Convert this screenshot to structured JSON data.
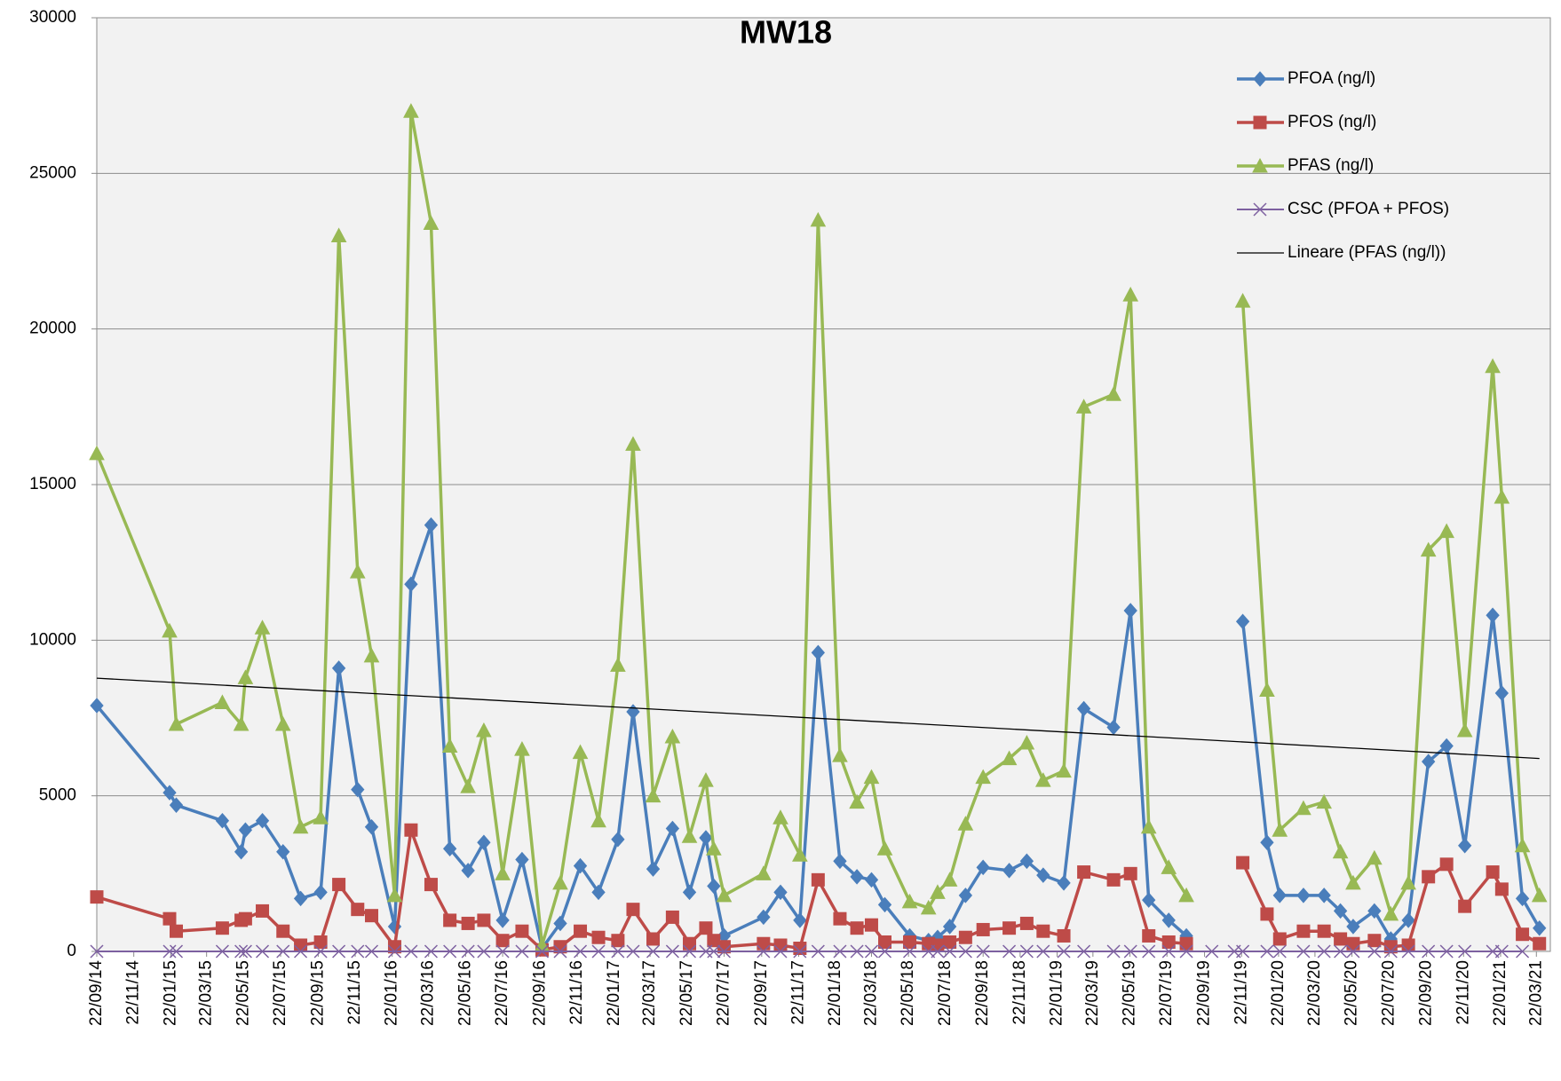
{
  "chart_data": {
    "type": "line",
    "title": "MW18",
    "x": [
      "22/09/14",
      "20/01/15",
      "31/01/15",
      "17/04/15",
      "18/05/15",
      "25/05/15",
      "22/06/15",
      "26/07/15",
      "24/08/15",
      "26/09/15",
      "26/10/15",
      "26/11/15",
      "19/12/15",
      "26/01/16",
      "22/02/16",
      "26/03/16",
      "26/04/16",
      "26/05/16",
      "21/06/16",
      "22/07/16",
      "23/08/16",
      "25/09/16",
      "25/10/16",
      "27/11/16",
      "27/12/16",
      "28/01/17",
      "22/02/17",
      "27/03/17",
      "28/04/17",
      "26/05/17",
      "22/06/17",
      "05/07/17",
      "22/07/17",
      "25/09/17",
      "23/10/17",
      "24/11/17",
      "24/12/17",
      "29/01/18",
      "26/02/18",
      "22/03/18",
      "13/04/18",
      "24/05/18",
      "24/06/18",
      "09/07/18",
      "29/07/18",
      "24/08/18",
      "22/09/18",
      "04/11/18",
      "03/12/18",
      "30/12/18",
      "02/02/19",
      "07/03/19",
      "25/04/19",
      "23/05/19",
      "22/06/19",
      "25/07/19",
      "23/08/19",
      "04/10/19",
      "10/11/19",
      "24/11/19",
      "03/01/20",
      "24/01/20",
      "03/03/20",
      "06/04/20",
      "03/05/20",
      "24/05/20",
      "28/06/20",
      "25/07/20",
      "23/08/20",
      "25/09/20",
      "25/10/20",
      "24/11/20",
      "09/01/21",
      "24/01/21",
      "27/02/21",
      "27/03/21"
    ],
    "series": [
      {
        "name": "PFOA (ng/l)",
        "color": "#4a7ebb",
        "marker": "diamond",
        "values": [
          7900,
          5100,
          4700,
          4200,
          3200,
          3900,
          4200,
          3200,
          1700,
          1900,
          9100,
          5200,
          4000,
          800,
          11800,
          13700,
          3300,
          2600,
          3500,
          1000,
          2950,
          100,
          900,
          2750,
          1900,
          3600,
          7700,
          2650,
          3950,
          1900,
          3650,
          2100,
          500,
          1100,
          1900,
          1000,
          9600,
          2900,
          2400,
          2300,
          1500,
          500,
          350,
          450,
          800,
          1800,
          2700,
          2600,
          2900,
          2450,
          2200,
          7800,
          7200,
          10950,
          1650,
          1000,
          500,
          null,
          null,
          10600,
          3500,
          1800,
          1800,
          1800,
          1300,
          800,
          1300,
          400,
          1000,
          6100,
          6600,
          3400,
          10800,
          8300,
          1700,
          750
        ]
      },
      {
        "name": "PFOS (ng/l)",
        "color": "#be4b48",
        "marker": "square",
        "values": [
          1750,
          1050,
          650,
          750,
          1000,
          1050,
          1300,
          650,
          200,
          300,
          2150,
          1350,
          1150,
          150,
          3900,
          2150,
          1000,
          900,
          1000,
          350,
          650,
          50,
          150,
          650,
          450,
          350,
          1350,
          400,
          1100,
          250,
          750,
          350,
          150,
          250,
          200,
          100,
          2300,
          1050,
          750,
          850,
          300,
          300,
          250,
          200,
          300,
          450,
          700,
          750,
          900,
          650,
          500,
          2550,
          2300,
          2500,
          500,
          300,
          250,
          null,
          null,
          2850,
          1200,
          400,
          650,
          650,
          400,
          250,
          350,
          150,
          200,
          2400,
          2800,
          1450,
          2550,
          2000,
          550,
          250
        ]
      },
      {
        "name": "PFAS (ng/l)",
        "color": "#98b954",
        "marker": "triangle",
        "values": [
          16000,
          10300,
          7300,
          8000,
          7300,
          8800,
          10400,
          7300,
          4000,
          4300,
          23000,
          12200,
          9500,
          1800,
          27000,
          23400,
          6600,
          5300,
          7100,
          2500,
          6500,
          200,
          2200,
          6400,
          4200,
          9200,
          16300,
          5000,
          6900,
          3700,
          5500,
          3300,
          1800,
          2500,
          4300,
          3100,
          23500,
          6300,
          4800,
          5600,
          3300,
          1600,
          1400,
          1900,
          2300,
          4100,
          5600,
          6200,
          6700,
          5500,
          5800,
          17500,
          17900,
          21100,
          4000,
          2700,
          1800,
          null,
          null,
          20900,
          8400,
          3900,
          4600,
          4800,
          3200,
          2200,
          3000,
          1200,
          2200,
          12900,
          13500,
          7100,
          18800,
          14600,
          3400,
          1800
        ]
      },
      {
        "name": "CSC (PFOA + PFOS)",
        "color": "#7d60a0",
        "marker": "x",
        "values": [
          0,
          0,
          0,
          0,
          0,
          0,
          0,
          0,
          0,
          0,
          0,
          0,
          0,
          0,
          0,
          0,
          0,
          0,
          0,
          0,
          0,
          0,
          0,
          0,
          0,
          0,
          0,
          0,
          0,
          0,
          0,
          0,
          0,
          0,
          0,
          0,
          0,
          0,
          0,
          0,
          0,
          0,
          0,
          0,
          0,
          0,
          0,
          0,
          0,
          0,
          0,
          0,
          0,
          0,
          0,
          0,
          0,
          0,
          0,
          0,
          0,
          0,
          0,
          0,
          0,
          0,
          0,
          0,
          0,
          0,
          0,
          0,
          0,
          0,
          0,
          null
        ]
      }
    ],
    "trendline": {
      "name": "Lineare (PFAS (ng/l))",
      "color": "#000000",
      "x": [
        "22/09/14",
        "27/03/21"
      ],
      "values": [
        8780,
        6200
      ]
    },
    "xlim": [
      "22/09/14",
      "14/04/21"
    ],
    "xticks": [
      "22/09/14",
      "22/11/14",
      "22/01/15",
      "22/03/15",
      "22/05/15",
      "22/07/15",
      "22/09/15",
      "22/11/15",
      "22/01/16",
      "22/03/16",
      "22/05/16",
      "22/07/16",
      "22/09/16",
      "22/11/16",
      "22/01/17",
      "22/03/17",
      "22/05/17",
      "22/07/17",
      "22/09/17",
      "22/11/17",
      "22/01/18",
      "22/03/18",
      "22/05/18",
      "22/07/18",
      "22/09/18",
      "22/11/18",
      "22/01/19",
      "22/03/19",
      "22/05/19",
      "22/07/19",
      "22/09/19",
      "22/11/19",
      "22/01/20",
      "22/03/20",
      "22/05/20",
      "22/07/20",
      "22/09/20",
      "22/11/20",
      "22/01/21",
      "22/03/21"
    ],
    "ylim": [
      0,
      30000
    ],
    "yticks": [
      0,
      5000,
      10000,
      15000,
      20000,
      25000,
      30000
    ],
    "grid": true,
    "legend": "upper right"
  }
}
